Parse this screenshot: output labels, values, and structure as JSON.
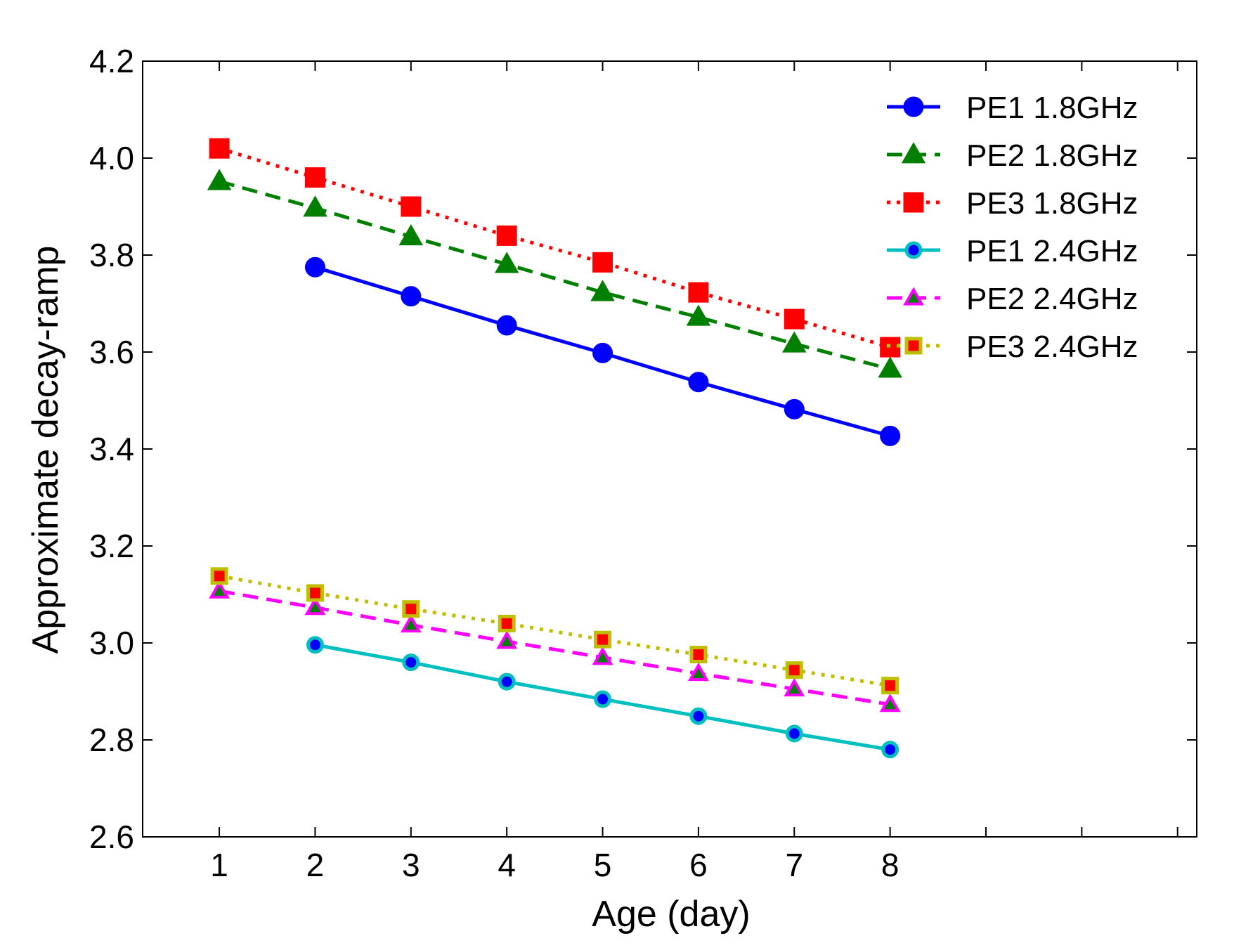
{
  "chart_data": {
    "type": "line",
    "title": "",
    "xlabel": "Age (day)",
    "ylabel": "Approximate decay-ramp",
    "xlim": [
      0.2,
      11.2
    ],
    "ylim": [
      2.6,
      4.2
    ],
    "xticks": [
      1,
      2,
      3,
      4,
      5,
      6,
      7,
      8
    ],
    "yticks": [
      2.6,
      2.8,
      3.0,
      3.2,
      3.4,
      3.6,
      3.8,
      4.0,
      4.2
    ],
    "ytick_labels": [
      "2.6",
      "2.8",
      "3.0",
      "3.2",
      "3.4",
      "3.6",
      "3.8",
      "4.0",
      "4.2"
    ],
    "xtick_labels": [
      "1",
      "2",
      "3",
      "4",
      "5",
      "6",
      "7",
      "8"
    ],
    "grid": false,
    "legend_position": "top-right",
    "series": [
      {
        "name": "PE1 1.8GHz",
        "color": "#0000ff",
        "marker": "circle",
        "marker_face": "#0000ff",
        "marker_edge": "#0000ff",
        "dash": "solid",
        "x": [
          2,
          3,
          4,
          5,
          6,
          7,
          8
        ],
        "y": [
          3.775,
          3.715,
          3.655,
          3.598,
          3.538,
          3.482,
          3.427
        ]
      },
      {
        "name": "PE2 1.8GHz",
        "color": "#007f00",
        "marker": "triangle",
        "marker_face": "#007f00",
        "marker_edge": "#007f00",
        "dash": "dashed",
        "x": [
          1,
          2,
          3,
          4,
          5,
          6,
          7,
          8
        ],
        "y": [
          3.952,
          3.897,
          3.838,
          3.781,
          3.723,
          3.672,
          3.617,
          3.565
        ]
      },
      {
        "name": "PE3 1.8GHz",
        "color": "#ff0000",
        "marker": "square",
        "marker_face": "#ff0000",
        "marker_edge": "#ff0000",
        "dash": "dotted",
        "x": [
          1,
          2,
          3,
          4,
          5,
          6,
          7,
          8
        ],
        "y": [
          4.02,
          3.96,
          3.9,
          3.84,
          3.785,
          3.723,
          3.668,
          3.61
        ]
      },
      {
        "name": "PE1 2.4GHz",
        "color": "#00bfbf",
        "marker": "circle",
        "marker_face": "#0000ff",
        "marker_edge": "#00bfbf",
        "dash": "solid",
        "x": [
          2,
          3,
          4,
          5,
          6,
          7,
          8
        ],
        "y": [
          2.996,
          2.96,
          2.92,
          2.884,
          2.849,
          2.813,
          2.78
        ]
      },
      {
        "name": "PE2 2.4GHz",
        "color": "#ff00ff",
        "marker": "triangle",
        "marker_face": "#007f00",
        "marker_edge": "#ff00ff",
        "dash": "dashed",
        "x": [
          1,
          2,
          3,
          4,
          5,
          6,
          7,
          8
        ],
        "y": [
          3.107,
          3.073,
          3.037,
          3.003,
          2.97,
          2.937,
          2.905,
          2.873
        ]
      },
      {
        "name": "PE3 2.4GHz",
        "color": "#bfbf00",
        "marker": "square",
        "marker_face": "#ff0000",
        "marker_edge": "#bfbf00",
        "dash": "dotted",
        "x": [
          1,
          2,
          3,
          4,
          5,
          6,
          7,
          8
        ],
        "y": [
          3.138,
          3.103,
          3.07,
          3.04,
          3.007,
          2.976,
          2.944,
          2.912
        ]
      }
    ]
  }
}
